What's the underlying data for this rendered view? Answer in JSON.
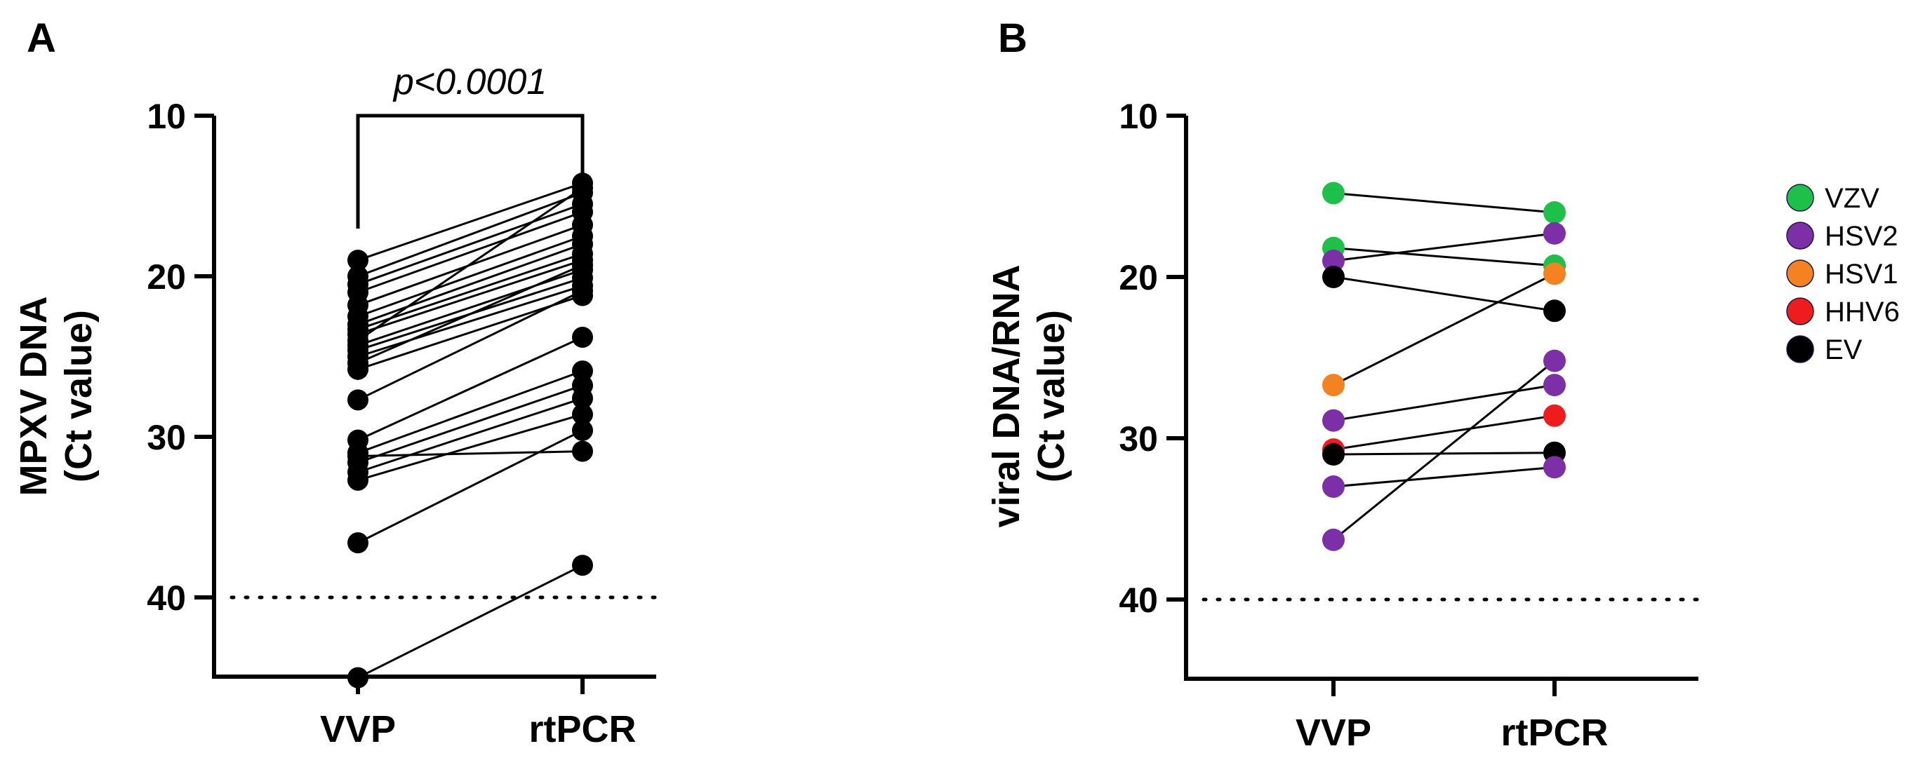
{
  "panels": {
    "a": {
      "letter": "A"
    },
    "b": {
      "letter": "B"
    }
  },
  "chart_data": [
    {
      "type": "scatter",
      "panel": "A",
      "ylabel_line1": "MPXV DNA",
      "ylabel_line2": "(Ct value)",
      "categories": [
        "VVP",
        "rtPCR"
      ],
      "y_axis_inverted": true,
      "ylim": [
        10,
        45
      ],
      "yticks": [
        10,
        20,
        30,
        40
      ],
      "threshold": 40,
      "annotation": "p<0.0001",
      "pairs": [
        [
          19.0,
          14.2
        ],
        [
          20.0,
          14.8
        ],
        [
          20.5,
          15.5
        ],
        [
          21.0,
          16.0
        ],
        [
          21.8,
          16.8
        ],
        [
          22.5,
          17.5
        ],
        [
          23.0,
          18.0
        ],
        [
          23.3,
          18.6
        ],
        [
          23.6,
          19.0
        ],
        [
          24.0,
          14.5
        ],
        [
          24.3,
          19.6
        ],
        [
          24.6,
          20.1
        ],
        [
          25.0,
          20.6
        ],
        [
          25.4,
          19.3
        ],
        [
          25.8,
          21.2
        ],
        [
          27.7,
          20.9
        ],
        [
          30.2,
          23.8
        ],
        [
          31.0,
          25.9
        ],
        [
          31.6,
          26.8
        ],
        [
          32.2,
          27.6
        ],
        [
          32.7,
          28.6
        ],
        [
          36.6,
          29.6
        ],
        [
          45.0,
          38.0
        ],
        [
          31.2,
          30.9
        ]
      ]
    },
    {
      "type": "scatter",
      "panel": "B",
      "ylabel_line1": "viral DNA/RNA",
      "ylabel_line2": "(Ct value)",
      "categories": [
        "VVP",
        "rtPCR"
      ],
      "y_axis_inverted": true,
      "ylim": [
        10,
        45
      ],
      "yticks": [
        10,
        20,
        30,
        40
      ],
      "threshold": 40,
      "legend": [
        {
          "label": "VZV",
          "color": "#1ec04a"
        },
        {
          "label": "HSV2",
          "color": "#7c2fa6"
        },
        {
          "label": "HSV1",
          "color": "#f58220"
        },
        {
          "label": "HHV6",
          "color": "#ee1c1c"
        },
        {
          "label": "EV",
          "color": "#000000"
        }
      ],
      "pairs": [
        {
          "virus": "VZV",
          "vvp": 14.8,
          "rtpcr": 16.0
        },
        {
          "virus": "VZV",
          "vvp": 18.2,
          "rtpcr": 19.3
        },
        {
          "virus": "HSV2",
          "vvp": 19.0,
          "rtpcr": 17.3
        },
        {
          "virus": "EV",
          "vvp": 20.0,
          "rtpcr": 22.1
        },
        {
          "virus": "HSV1",
          "vvp": 26.7,
          "rtpcr": 19.8
        },
        {
          "virus": "HSV2",
          "vvp": 28.9,
          "rtpcr": 26.7
        },
        {
          "virus": "HHV6",
          "vvp": 30.7,
          "rtpcr": 28.6
        },
        {
          "virus": "EV",
          "vvp": 31.0,
          "rtpcr": 30.9
        },
        {
          "virus": "HSV2",
          "vvp": 33.0,
          "rtpcr": 31.8
        },
        {
          "virus": "HSV2",
          "vvp": 36.3,
          "rtpcr": 25.2
        }
      ]
    }
  ]
}
